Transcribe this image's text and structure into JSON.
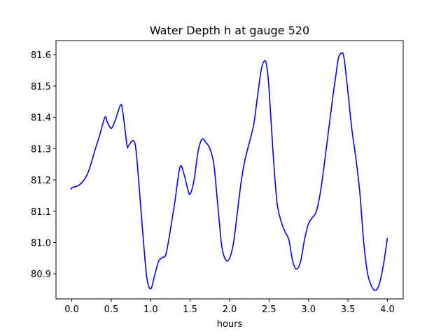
{
  "chart_data": {
    "type": "line",
    "title": "Water Depth h at gauge 520",
    "xlabel": "hours",
    "ylabel": "",
    "xlim": [
      -0.2,
      4.2
    ],
    "ylim": [
      80.82,
      81.645
    ],
    "xticks": [
      0.0,
      0.5,
      1.0,
      1.5,
      2.0,
      2.5,
      3.0,
      3.5,
      4.0
    ],
    "xtick_labels": [
      "0.0",
      "0.5",
      "1.0",
      "1.5",
      "2.0",
      "2.5",
      "3.0",
      "3.5",
      "4.0"
    ],
    "yticks": [
      80.9,
      81.0,
      81.1,
      81.2,
      81.3,
      81.4,
      81.5,
      81.6
    ],
    "ytick_labels": [
      "80.9",
      "81.0",
      "81.1",
      "81.2",
      "81.3",
      "81.4",
      "81.5",
      "81.6"
    ],
    "grid": false,
    "line_color": "#0000ff",
    "series": [
      {
        "name": "",
        "x": [
          0.0,
          0.0,
          0.1,
          0.2,
          0.3,
          0.35,
          0.42,
          0.45,
          0.5,
          0.55,
          0.62,
          0.65,
          0.7,
          0.72,
          0.78,
          0.82,
          0.9,
          0.95,
          1.0,
          1.05,
          1.1,
          1.15,
          1.2,
          1.3,
          1.37,
          1.42,
          1.47,
          1.5,
          1.55,
          1.6,
          1.65,
          1.7,
          1.75,
          1.8,
          1.85,
          1.9,
          1.95,
          2.0,
          2.05,
          2.1,
          2.15,
          2.2,
          2.3,
          2.35,
          2.4,
          2.44,
          2.47,
          2.5,
          2.55,
          2.6,
          2.65,
          2.7,
          2.75,
          2.8,
          2.85,
          2.9,
          2.95,
          3.0,
          3.05,
          3.1,
          3.15,
          3.2,
          3.3,
          3.35,
          3.38,
          3.42,
          3.45,
          3.5,
          3.55,
          3.6,
          3.65,
          3.7,
          3.75,
          3.8,
          3.85,
          3.9,
          3.95,
          4.0
        ],
        "y": [
          81.17,
          81.175,
          81.185,
          81.22,
          81.3,
          81.34,
          81.4,
          81.385,
          81.365,
          81.39,
          81.44,
          81.41,
          81.31,
          81.31,
          81.325,
          81.28,
          81.03,
          80.89,
          80.852,
          80.895,
          80.94,
          80.953,
          80.97,
          81.12,
          81.24,
          81.22,
          81.17,
          81.155,
          81.2,
          81.29,
          81.33,
          81.32,
          81.3,
          81.25,
          81.12,
          80.99,
          80.945,
          80.95,
          81.0,
          81.1,
          81.2,
          81.27,
          81.37,
          81.46,
          81.55,
          81.58,
          81.565,
          81.49,
          81.29,
          81.13,
          81.07,
          81.035,
          81.01,
          80.94,
          80.915,
          80.94,
          81.01,
          81.06,
          81.08,
          81.1,
          81.16,
          81.25,
          81.45,
          81.54,
          81.59,
          81.605,
          81.59,
          81.48,
          81.36,
          81.27,
          81.16,
          81.0,
          80.9,
          80.86,
          80.847,
          80.87,
          80.93,
          81.015
        ]
      }
    ]
  }
}
